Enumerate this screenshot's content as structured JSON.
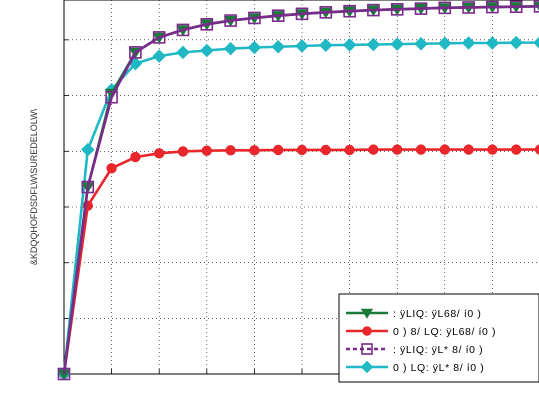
{
  "chart_data": {
    "type": "line",
    "title": "",
    "xlabel": "",
    "ylabel": "&KDQQHOFDSDFLW\\SUREDELOLW\\",
    "grid": true,
    "x": [
      1,
      2,
      3,
      4,
      5,
      6,
      7,
      8,
      9,
      10,
      11,
      12,
      13,
      14,
      15,
      16,
      17,
      18,
      19,
      20,
      21
    ],
    "xlim": [
      1,
      21
    ],
    "ylim": [
      0,
      1
    ],
    "legend_position": "bottom-right",
    "series": [
      {
        "name": ": ÿLIQ: ÿL68/ í0 )",
        "color": "#1a7a3a",
        "marker": "triangle-down",
        "values": [
          0.0,
          0.5,
          0.75,
          0.86,
          0.9,
          0.92,
          0.935,
          0.945,
          0.952,
          0.958,
          0.963,
          0.967,
          0.97,
          0.973,
          0.975,
          0.977,
          0.979,
          0.98,
          0.981,
          0.982,
          0.983
        ]
      },
      {
        "name": "0 ) 8/ LQ: ÿL68/ í0 )",
        "color": "#e8262b",
        "marker": "circle",
        "values": [
          0.0,
          0.45,
          0.55,
          0.58,
          0.59,
          0.595,
          0.597,
          0.598,
          0.598,
          0.599,
          0.599,
          0.599,
          0.599,
          0.6,
          0.6,
          0.6,
          0.6,
          0.6,
          0.6,
          0.6,
          0.6
        ]
      },
      {
        "name": ": ÿLIQ: ÿL* 8/ í0 )",
        "color": "#7a2a8a",
        "marker": "square",
        "values": [
          0.0,
          0.5,
          0.74,
          0.86,
          0.9,
          0.92,
          0.935,
          0.945,
          0.952,
          0.958,
          0.963,
          0.967,
          0.97,
          0.973,
          0.975,
          0.977,
          0.979,
          0.98,
          0.981,
          0.982,
          0.983
        ]
      },
      {
        "name": "0 ) LQ: ÿL* 8/ í0 )",
        "color": "#1fb8c4",
        "marker": "diamond",
        "values": [
          0.0,
          0.6,
          0.76,
          0.83,
          0.85,
          0.86,
          0.865,
          0.87,
          0.873,
          0.875,
          0.877,
          0.879,
          0.88,
          0.881,
          0.882,
          0.883,
          0.884,
          0.885,
          0.885,
          0.886,
          0.886
        ]
      }
    ]
  }
}
